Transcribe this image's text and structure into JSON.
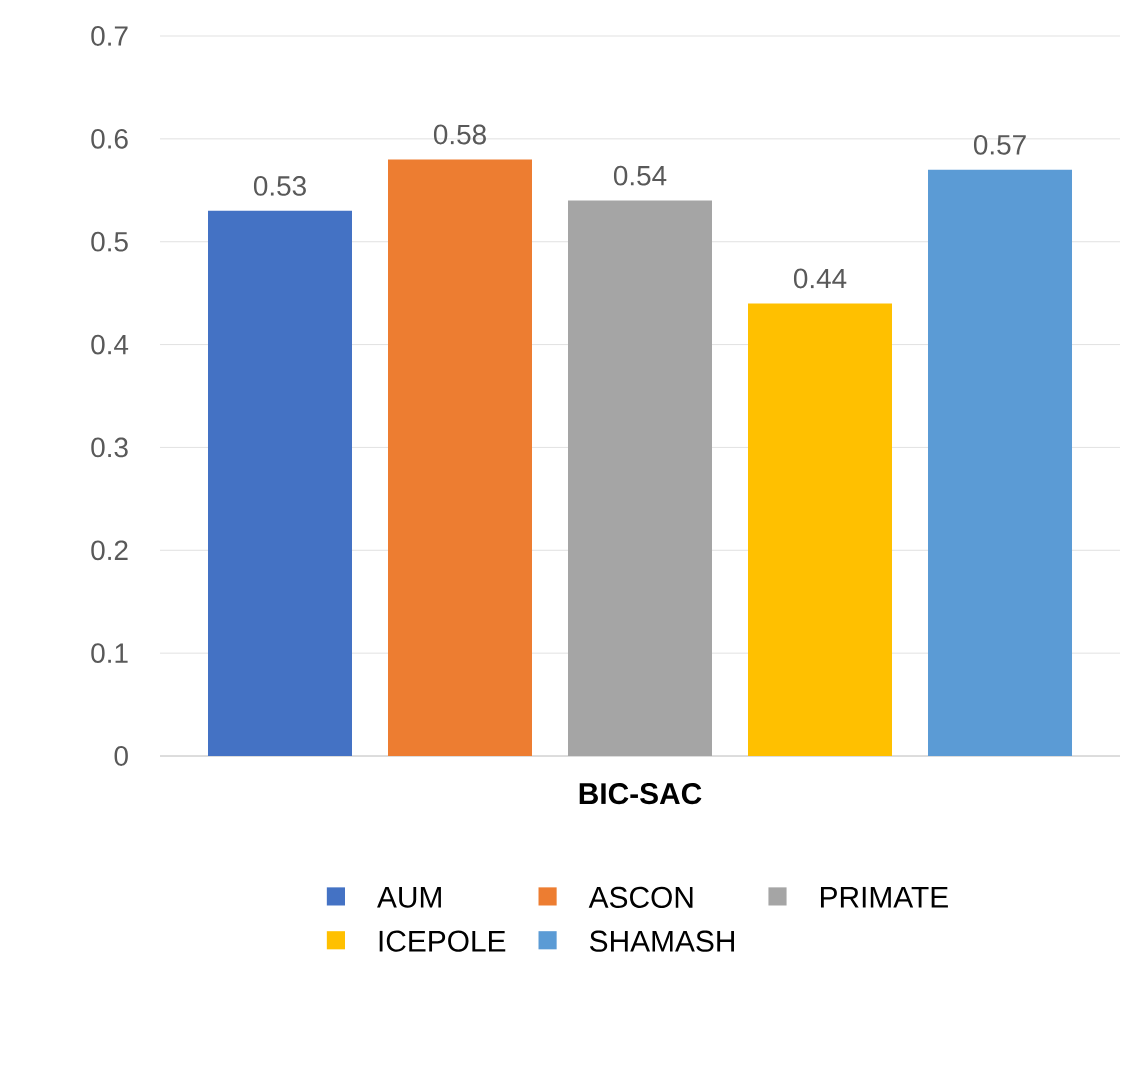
{
  "chart_data": {
    "type": "bar",
    "categories": [
      "BIC-SAC"
    ],
    "series": [
      {
        "name": "AUM",
        "color": "#4472c4",
        "values": [
          0.53
        ]
      },
      {
        "name": "ASCON",
        "color": "#ed7d31",
        "values": [
          0.58
        ]
      },
      {
        "name": "PRIMATE",
        "color": "#a5a5a5",
        "values": [
          0.54
        ]
      },
      {
        "name": "ICEPOLE",
        "color": "#ffc000",
        "values": [
          0.44
        ]
      },
      {
        "name": "SHAMASH",
        "color": "#5b9bd5",
        "values": [
          0.57
        ]
      }
    ],
    "ylim": [
      0,
      0.7
    ],
    "yticks": [
      0,
      0.1,
      0.2,
      0.3,
      0.4,
      0.5,
      0.6,
      0.7
    ],
    "grid": "y",
    "legend": "bottom",
    "data_labels": true
  }
}
